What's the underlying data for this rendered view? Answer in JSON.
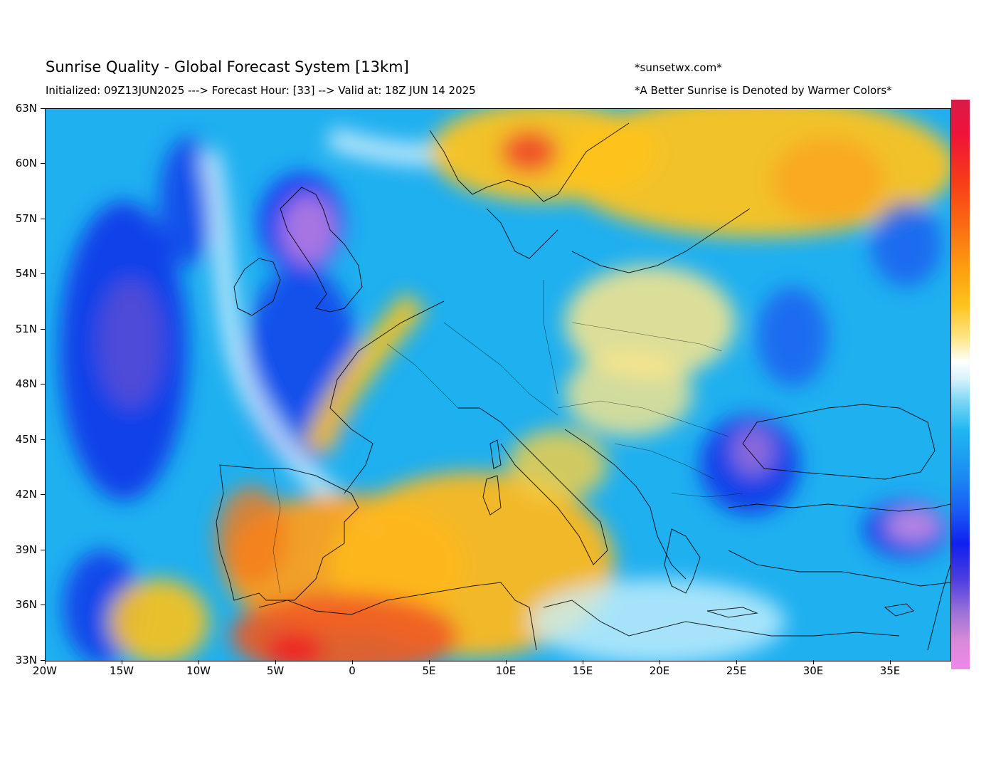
{
  "header": {
    "title": "Sunrise Quality - Global Forecast System [13km]",
    "subtitle": "Initialized: 09Z13JUN2025 ---> Forecast Hour: [33] --> Valid at: 18Z JUN 14 2025",
    "site": "*sunsetwx.com*",
    "note": "*A Better Sunrise is Denoted by Warmer Colors*"
  },
  "axes": {
    "lat_labels": [
      "63N",
      "60N",
      "57N",
      "54N",
      "51N",
      "48N",
      "45N",
      "42N",
      "39N",
      "36N",
      "33N"
    ],
    "lon_labels": [
      "20W",
      "15W",
      "10W",
      "5W",
      "0",
      "5E",
      "10E",
      "15E",
      "20E",
      "25E",
      "30E",
      "35E"
    ]
  },
  "map": {
    "region": "Europe / Mediterranean",
    "extent": {
      "lon_min": -20,
      "lon_max": 39,
      "lat_min": 33,
      "lat_max": 63
    },
    "colors": {
      "ocean_blue": "#1fb0f0",
      "deep_blue": "#1030e8",
      "purple": "#b070d8",
      "white": "#ffffff",
      "yellow": "#fdd020",
      "orange": "#fc9a10",
      "red": "#f02a20"
    }
  },
  "colorbar": {
    "colors": [
      "#d81b4a",
      "#f0123a",
      "#fb6a12",
      "#fdc31a",
      "#ffffff",
      "#1fb8f0",
      "#1a5cf5",
      "#1020f0",
      "#9a72d8",
      "#ee88ec"
    ],
    "meaning": "warmer colors = better sunrise"
  }
}
